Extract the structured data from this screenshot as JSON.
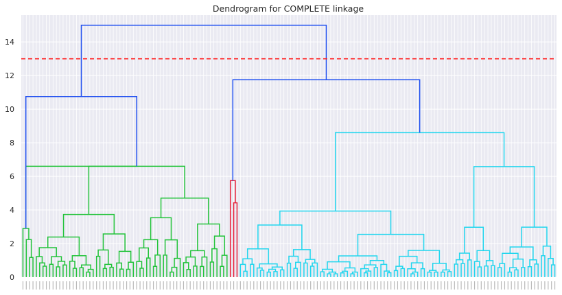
{
  "chart_data": {
    "type": "dendrogram",
    "title": "Dendrogram for COMPLETE linkage",
    "xlabel": "",
    "ylabel": "",
    "ylim": [
      0,
      15.6
    ],
    "yticks": [
      0,
      2,
      4,
      6,
      8,
      10,
      12,
      14
    ],
    "grid": true,
    "legend": "none",
    "leaf_count": 160,
    "cut_line": {
      "y": 13,
      "color": "#ff2222",
      "style": "dashed"
    },
    "colors": {
      "background": "#eaeaf2",
      "grid": "#ffffff",
      "link_above_threshold": "#1f4ff0",
      "cluster_green": "#22c33a",
      "cluster_red": "#e8213a",
      "cluster_cyan": "#22d6ee"
    },
    "top_level_merges": [
      {
        "name": "root",
        "height": 15.0,
        "color": "link_above_threshold"
      },
      {
        "name": "left",
        "height": 10.75,
        "color": "link_above_threshold"
      },
      {
        "name": "right",
        "height": 11.75,
        "color": "link_above_threshold"
      }
    ],
    "clusters": [
      {
        "name": "cluster-1",
        "color": "cluster_green",
        "leaves": 4,
        "height": 2.9
      },
      {
        "name": "cluster-2",
        "color": "cluster_green",
        "leaves": 58,
        "height": 6.6
      },
      {
        "name": "cluster-3",
        "color": "cluster_red",
        "leaves": 3,
        "height": 5.75
      },
      {
        "name": "cluster-4",
        "color": "cluster_cyan",
        "leaves": 95,
        "height": 8.6
      }
    ]
  }
}
